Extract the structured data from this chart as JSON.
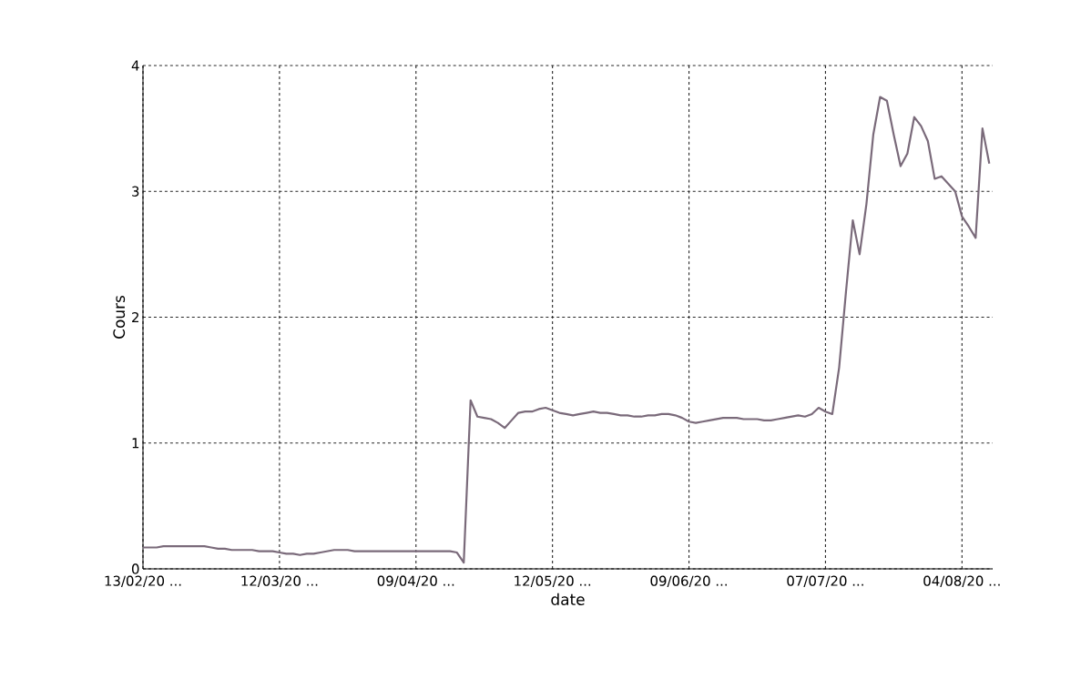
{
  "chart_data": {
    "type": "line",
    "xlabel": "date",
    "ylabel": "Cours",
    "categories": [
      "13/02/20 ...",
      null,
      null,
      null,
      null,
      null,
      null,
      null,
      null,
      null,
      null,
      null,
      null,
      null,
      null,
      null,
      null,
      null,
      null,
      null,
      "12/03/20 ...",
      null,
      null,
      null,
      null,
      null,
      null,
      null,
      null,
      null,
      null,
      null,
      null,
      null,
      null,
      null,
      null,
      null,
      null,
      null,
      "09/04/20 ...",
      null,
      null,
      null,
      null,
      null,
      null,
      null,
      null,
      null,
      null,
      null,
      null,
      null,
      null,
      null,
      null,
      null,
      null,
      null,
      "12/05/20 ...",
      null,
      null,
      null,
      null,
      null,
      null,
      null,
      null,
      null,
      null,
      null,
      null,
      null,
      null,
      null,
      null,
      null,
      null,
      null,
      "09/06/20 ...",
      null,
      null,
      null,
      null,
      null,
      null,
      null,
      null,
      null,
      null,
      null,
      null,
      null,
      null,
      null,
      null,
      null,
      null,
      null,
      "07/07/20 ...",
      null,
      null,
      null,
      null,
      null,
      null,
      null,
      null,
      null,
      null,
      null,
      null,
      null,
      null,
      null,
      null,
      null,
      null,
      null,
      "04/08/20 ...",
      null,
      null,
      null,
      null
    ],
    "series": [
      {
        "color": "#7a6a7a",
        "values": [
          0.17,
          0.17,
          0.17,
          0.18,
          0.18,
          0.18,
          0.18,
          0.18,
          0.18,
          0.18,
          0.17,
          0.16,
          0.16,
          0.15,
          0.15,
          0.15,
          0.15,
          0.14,
          0.14,
          0.14,
          0.13,
          0.12,
          0.12,
          0.11,
          0.12,
          0.12,
          0.13,
          0.14,
          0.15,
          0.15,
          0.15,
          0.14,
          0.14,
          0.14,
          0.14,
          0.14,
          0.14,
          0.14,
          0.14,
          0.14,
          0.14,
          0.14,
          0.14,
          0.14,
          0.14,
          0.14,
          0.13,
          0.05,
          1.34,
          1.21,
          1.2,
          1.19,
          1.16,
          1.12,
          1.18,
          1.24,
          1.25,
          1.25,
          1.27,
          1.28,
          1.26,
          1.24,
          1.23,
          1.22,
          1.23,
          1.24,
          1.25,
          1.24,
          1.24,
          1.23,
          1.22,
          1.22,
          1.21,
          1.21,
          1.22,
          1.22,
          1.23,
          1.23,
          1.22,
          1.2,
          1.17,
          1.16,
          1.17,
          1.18,
          1.19,
          1.2,
          1.2,
          1.2,
          1.19,
          1.19,
          1.19,
          1.18,
          1.18,
          1.19,
          1.2,
          1.21,
          1.22,
          1.21,
          1.23,
          1.28,
          1.25,
          1.23,
          1.6,
          2.2,
          2.77,
          2.5,
          2.9,
          3.45,
          3.75,
          3.72,
          3.45,
          3.2,
          3.3,
          3.59,
          3.52,
          3.4,
          3.1,
          3.12,
          3.06,
          3.0,
          2.8,
          2.72,
          2.63,
          3.5,
          3.22
        ]
      }
    ],
    "ylim": [
      0,
      4
    ],
    "yticks": [
      0,
      1,
      2,
      3,
      4
    ],
    "grid": true,
    "marker": "none",
    "line_style": "solid"
  }
}
